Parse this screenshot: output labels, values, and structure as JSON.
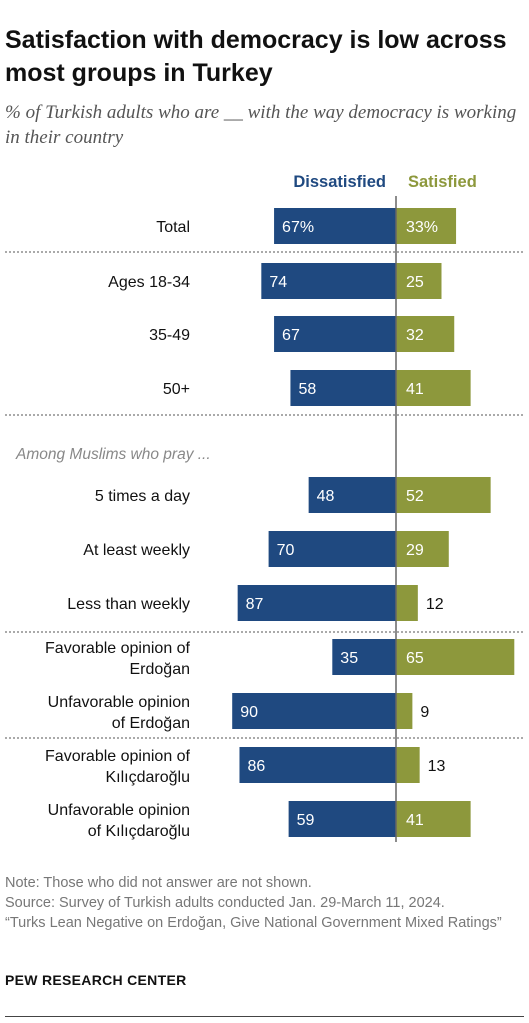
{
  "title": "Satisfaction with democracy is low across most groups in Turkey",
  "subtitle": "% of Turkish adults who are __ with the way democracy is working in their country",
  "chart_data": {
    "type": "bar",
    "orientation": "diverging-horizontal",
    "series": [
      {
        "name": "Dissatisfied",
        "color": "#1f4980"
      },
      {
        "name": "Satisfied",
        "color": "#8d983c"
      }
    ],
    "section_label": "Among Muslims who pray ...",
    "rows": [
      {
        "label": "Total",
        "dissatisfied": 67,
        "satisfied": 33,
        "dissatisfied_label": "67%",
        "satisfied_label": "33%"
      },
      {
        "label": "Ages 18-34",
        "dissatisfied": 74,
        "satisfied": 25,
        "dissatisfied_label": "74",
        "satisfied_label": "25"
      },
      {
        "label": "35-49",
        "dissatisfied": 67,
        "satisfied": 32,
        "dissatisfied_label": "67",
        "satisfied_label": "32"
      },
      {
        "label": "50+",
        "dissatisfied": 58,
        "satisfied": 41,
        "dissatisfied_label": "58",
        "satisfied_label": "41"
      },
      {
        "label": "5 times a day",
        "dissatisfied": 48,
        "satisfied": 52,
        "dissatisfied_label": "48",
        "satisfied_label": "52"
      },
      {
        "label": "At least weekly",
        "dissatisfied": 70,
        "satisfied": 29,
        "dissatisfied_label": "70",
        "satisfied_label": "29"
      },
      {
        "label": "Less than weekly",
        "dissatisfied": 87,
        "satisfied": 12,
        "dissatisfied_label": "87",
        "satisfied_label": "12"
      },
      {
        "label": "Favorable opinion of Erdoğan",
        "dissatisfied": 35,
        "satisfied": 65,
        "dissatisfied_label": "35",
        "satisfied_label": "65"
      },
      {
        "label": "Unfavorable opinion of Erdoğan",
        "dissatisfied": 90,
        "satisfied": 9,
        "dissatisfied_label": "90",
        "satisfied_label": "9"
      },
      {
        "label": "Favorable opinion of Kılıçdaroğlu",
        "dissatisfied": 86,
        "satisfied": 13,
        "dissatisfied_label": "86",
        "satisfied_label": "13"
      },
      {
        "label": "Unfavorable opinion of Kılıçdaroğlu",
        "dissatisfied": 59,
        "satisfied": 41,
        "dissatisfied_label": "59",
        "satisfied_label": "41"
      }
    ]
  },
  "note": "Note: Those who did not answer are not shown.",
  "source": "Source: Survey of Turkish adults conducted Jan. 29-March 11, 2024.",
  "report": "“Turks Lean Negative on Erdoğan, Give National Government Mixed Ratings”",
  "credit": "PEW RESEARCH CENTER"
}
